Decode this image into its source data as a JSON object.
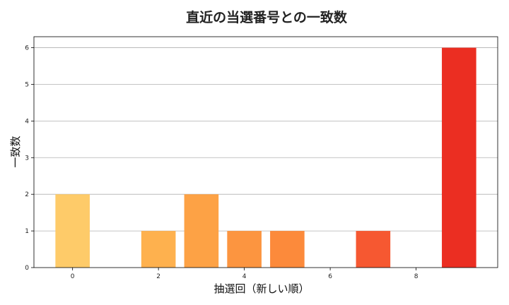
{
  "chart_data": {
    "type": "bar",
    "title": "直近の当選番号との一致数",
    "xlabel": "抽選回（新しい順）",
    "ylabel": "一致数",
    "x": [
      0,
      1,
      2,
      3,
      4,
      5,
      6,
      7,
      8,
      9
    ],
    "values": [
      2,
      0,
      1,
      2,
      1,
      1,
      0,
      1,
      0,
      6
    ],
    "xticks": [
      0,
      2,
      4,
      6,
      8
    ],
    "yticks": [
      0,
      1,
      2,
      3,
      4,
      5,
      6
    ],
    "xlim": [
      -0.9,
      9.9
    ],
    "ylim": [
      0,
      6.3
    ],
    "grid": true,
    "bar_colors": [
      "#fecb69",
      "#fec062",
      "#feb14e",
      "#fda245",
      "#fc9540",
      "#fc8a3b",
      "#fb7b35",
      "#f65831",
      "#f1432a",
      "#eb2e22"
    ]
  }
}
